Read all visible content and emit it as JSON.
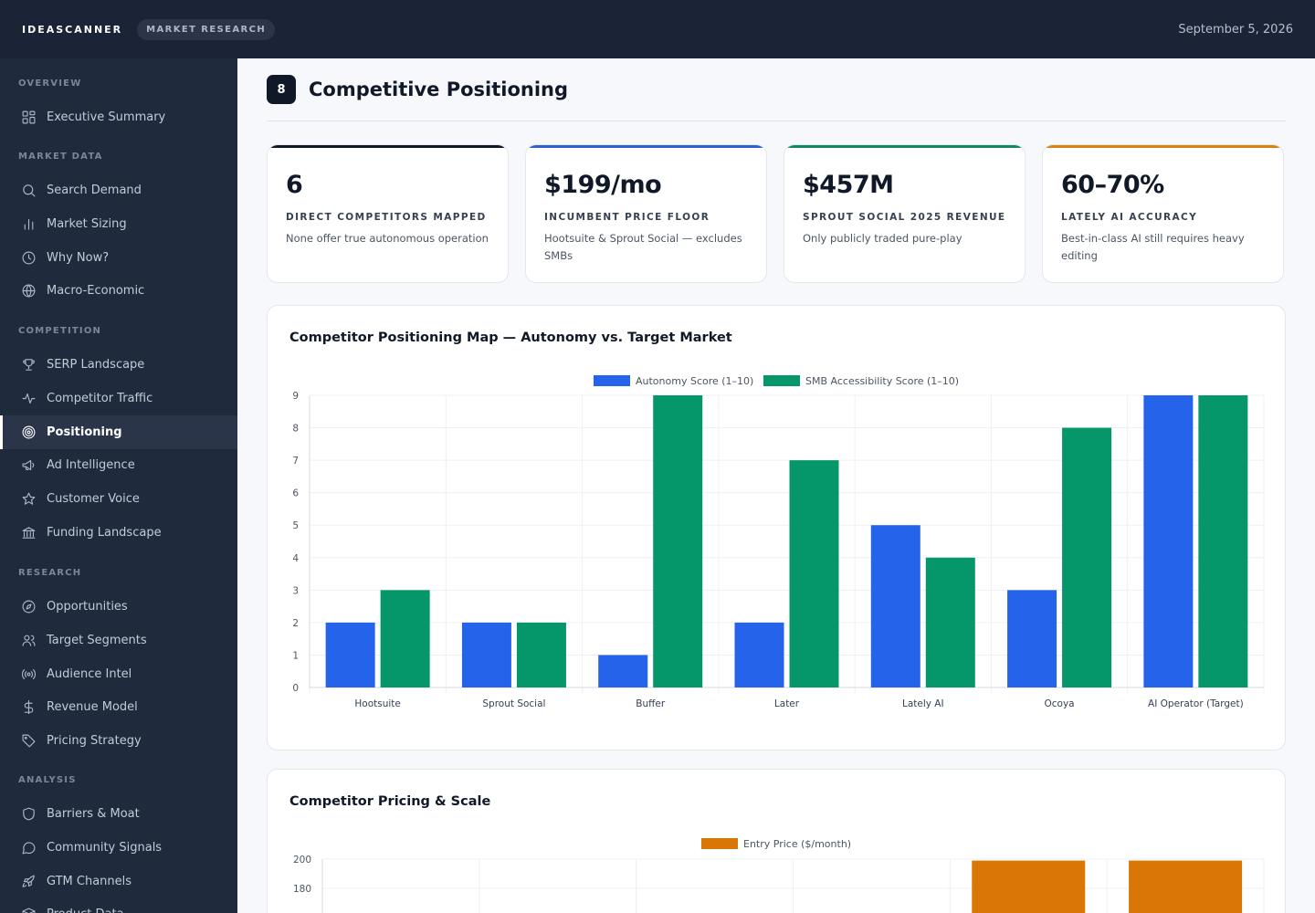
{
  "topbar": {
    "brand": "IDEASCANNER",
    "section": "MARKET RESEARCH",
    "date": "September 5, 2026"
  },
  "sidebar": {
    "groups": [
      {
        "label": "OVERVIEW",
        "items": [
          {
            "label": "Executive Summary",
            "icon": "grid-icon"
          }
        ]
      },
      {
        "label": "MARKET DATA",
        "items": [
          {
            "label": "Search Demand",
            "icon": "search-icon"
          },
          {
            "label": "Market Sizing",
            "icon": "bar-chart-icon"
          },
          {
            "label": "Why Now?",
            "icon": "clock-icon"
          },
          {
            "label": "Macro-Economic",
            "icon": "globe-icon"
          }
        ]
      },
      {
        "label": "COMPETITION",
        "items": [
          {
            "label": "SERP Landscape",
            "icon": "trophy-icon"
          },
          {
            "label": "Competitor Traffic",
            "icon": "activity-icon"
          },
          {
            "label": "Positioning",
            "icon": "target-icon",
            "active": true
          },
          {
            "label": "Ad Intelligence",
            "icon": "megaphone-icon"
          },
          {
            "label": "Customer Voice",
            "icon": "star-icon"
          },
          {
            "label": "Funding Landscape",
            "icon": "bank-icon"
          }
        ]
      },
      {
        "label": "RESEARCH",
        "items": [
          {
            "label": "Opportunities",
            "icon": "compass-icon"
          },
          {
            "label": "Target Segments",
            "icon": "users-icon"
          },
          {
            "label": "Audience Intel",
            "icon": "radio-icon"
          },
          {
            "label": "Revenue Model",
            "icon": "dollar-icon"
          },
          {
            "label": "Pricing Strategy",
            "icon": "tag-icon"
          }
        ]
      },
      {
        "label": "ANALYSIS",
        "items": [
          {
            "label": "Barriers & Moat",
            "icon": "shield-icon"
          },
          {
            "label": "Community Signals",
            "icon": "chat-icon"
          },
          {
            "label": "GTM Channels",
            "icon": "rocket-icon"
          },
          {
            "label": "Product Data",
            "icon": "box-icon"
          }
        ]
      }
    ]
  },
  "page": {
    "number": "8",
    "title": "Competitive Positioning"
  },
  "kpis": [
    {
      "value": "6",
      "label": "DIRECT COMPETITORS MAPPED",
      "sub": "None offer true autonomous operation",
      "accent": "#111827"
    },
    {
      "value": "$199/mo",
      "label": "INCUMBENT PRICE FLOOR",
      "sub": "Hootsuite & Sprout Social — excludes SMBs",
      "accent": "#2f5fd0"
    },
    {
      "value": "$457M",
      "label": "SPROUT SOCIAL 2025 REVENUE",
      "sub": "Only publicly traded pure-play",
      "accent": "#0f8a5f"
    },
    {
      "value": "60–70%",
      "label": "LATELY AI ACCURACY",
      "sub": "Best-in-class AI still requires heavy editing",
      "accent": "#d9820f"
    }
  ],
  "chart_data": [
    {
      "type": "bar",
      "title": "Competitor Positioning Map — Autonomy vs. Target Market",
      "categories": [
        "Hootsuite",
        "Sprout Social",
        "Buffer",
        "Later",
        "Lately AI",
        "Ocoya",
        "AI Operator (Target)"
      ],
      "series": [
        {
          "name": "Autonomy Score (1–10)",
          "color": "#2563eb",
          "values": [
            2,
            2,
            1,
            2,
            5,
            3,
            9
          ]
        },
        {
          "name": "SMB Accessibility Score (1–10)",
          "color": "#059669",
          "values": [
            3,
            2,
            9,
            7,
            4,
            8,
            9
          ]
        }
      ],
      "ylim": [
        0,
        9
      ],
      "yticks": [
        0,
        1,
        2,
        3,
        4,
        5,
        6,
        7,
        8,
        9
      ],
      "legend": "top-center",
      "grid": true
    },
    {
      "type": "bar",
      "title": "Competitor Pricing & Scale",
      "series": [
        {
          "name": "Entry Price ($/month)",
          "color": "#d97706",
          "values": [
            199,
            199
          ]
        }
      ],
      "bar_slots": [
        4,
        5
      ],
      "yticks": [
        180,
        200
      ],
      "legend": "top-center",
      "grid": true
    }
  ]
}
